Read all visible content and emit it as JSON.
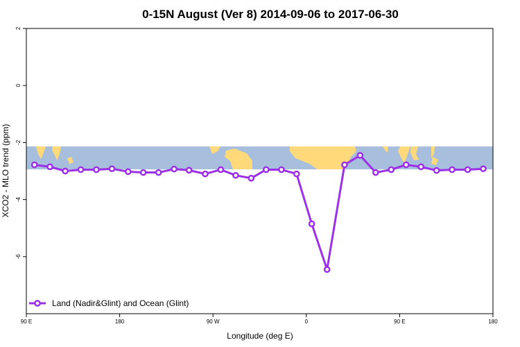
{
  "chart_data": {
    "type": "line",
    "title": "0-15N August (Ver 8)   2014-09-06 to 2017-06-30",
    "xlabel": "Longitude (deg E)",
    "ylabel": "XCO2 - MLO trend (ppm)",
    "xlim": [
      90,
      450
    ],
    "ylim": [
      -8,
      2
    ],
    "x_ticks": [
      {
        "value": 90,
        "label": "90 E"
      },
      {
        "value": 162,
        "label": "180"
      },
      {
        "value": 234,
        "label": "90 W"
      },
      {
        "value": 306,
        "label": "0"
      },
      {
        "value": 378,
        "label": "90 E"
      },
      {
        "value": 450,
        "label": "180"
      }
    ],
    "y_ticks": [
      {
        "value": 2,
        "label": "2"
      },
      {
        "value": 0,
        "label": "0"
      },
      {
        "value": -2,
        "label": "-2"
      },
      {
        "value": -4,
        "label": "-4"
      },
      {
        "value": -6,
        "label": "-6"
      }
    ],
    "background_map": {
      "lat_range": [
        0,
        15
      ],
      "land_color": "#FFD97A",
      "ocean_color": "#A7BEDD"
    },
    "legend": {
      "position": "bottom-left"
    },
    "series": [
      {
        "name": "Land (Nadir&Glint) and Ocean (Glint)",
        "color": "#9B30E6",
        "x": [
          96.3,
          108.2,
          120,
          132,
          144,
          156,
          168.5,
          180.2,
          192,
          204,
          215.5,
          228,
          240,
          251.5,
          263.5,
          275,
          286.8,
          298.5,
          310.2,
          322,
          335.5,
          347.5,
          359.5,
          371.5,
          383,
          394.5,
          406.5,
          418.5,
          430.5,
          442.5
        ],
        "y": [
          -2.78,
          -2.85,
          -3.0,
          -2.95,
          -2.95,
          -2.92,
          -3.02,
          -3.05,
          -3.05,
          -2.93,
          -2.97,
          -3.1,
          -2.95,
          -3.15,
          -3.25,
          -2.95,
          -2.95,
          -3.1,
          -4.85,
          -6.45,
          -2.78,
          -2.45,
          -3.05,
          -2.95,
          -2.78,
          -2.85,
          -2.98,
          -2.95,
          -2.95,
          -2.92
        ]
      }
    ]
  }
}
